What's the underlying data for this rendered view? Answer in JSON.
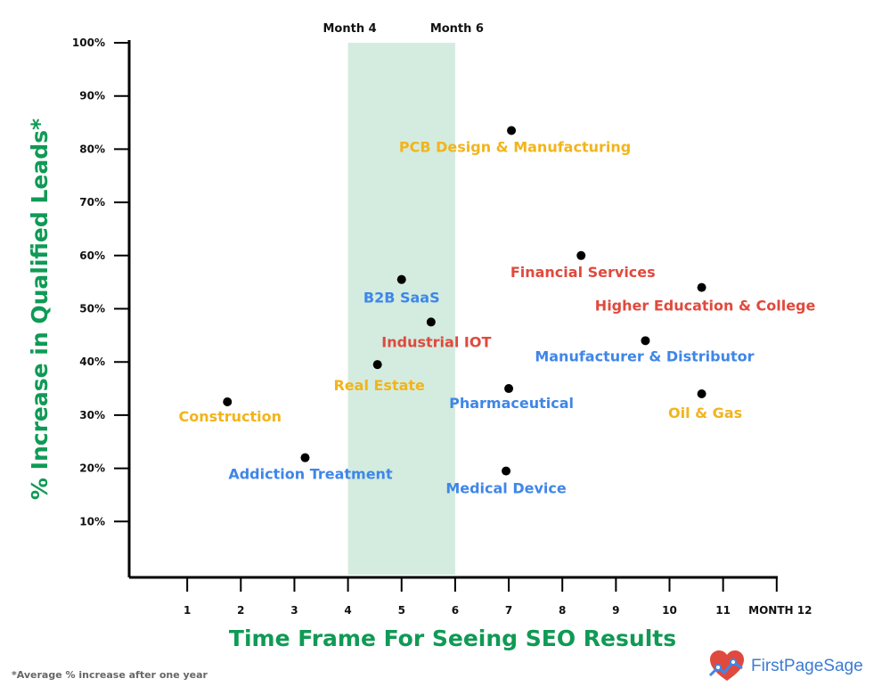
{
  "chart_data": {
    "type": "scatter",
    "ylabel": "% Increase in Qualified Leads*",
    "xlabel": "Time Frame For Seeing SEO Results",
    "footnote": "*Average % increase after one year",
    "x_ticks": [
      "1",
      "2",
      "3",
      "4",
      "5",
      "6",
      "7",
      "8",
      "9",
      "10",
      "11",
      "MONTH 12"
    ],
    "y_ticks": [
      "10%",
      "20%",
      "30%",
      "40%",
      "50%",
      "60%",
      "70%",
      "80%",
      "90%",
      "100%"
    ],
    "xlim": [
      0,
      12
    ],
    "ylim": [
      0,
      100
    ],
    "highlight_band": {
      "x_range": [
        4,
        6
      ],
      "labels": [
        "Month 4",
        "Month 6"
      ],
      "color": "#d3ecdf"
    },
    "points": [
      {
        "name": "PCB Design & Manufacturing",
        "x": 7.05,
        "y": 83.5,
        "color": "#f2b41b"
      },
      {
        "name": "Financial Services",
        "x": 8.35,
        "y": 60,
        "color": "#e0493d"
      },
      {
        "name": "Higher Education & College",
        "x": 10.6,
        "y": 54,
        "color": "#e0493d"
      },
      {
        "name": "B2B SaaS",
        "x": 5.0,
        "y": 55.5,
        "color": "#3f86e8"
      },
      {
        "name": "Industrial IOT",
        "x": 5.55,
        "y": 47.5,
        "color": "#e0493d"
      },
      {
        "name": "Manufacturer & Distributor",
        "x": 9.55,
        "y": 44,
        "color": "#3f86e8"
      },
      {
        "name": "Real Estate",
        "x": 4.55,
        "y": 39.5,
        "color": "#f2b41b"
      },
      {
        "name": "Pharmaceutical",
        "x": 7.0,
        "y": 35,
        "color": "#3f86e8"
      },
      {
        "name": "Oil & Gas",
        "x": 10.6,
        "y": 34,
        "color": "#f2b41b"
      },
      {
        "name": "Construction",
        "x": 1.75,
        "y": 32.5,
        "color": "#f2b41b"
      },
      {
        "name": "Addiction Treatment",
        "x": 3.2,
        "y": 22,
        "color": "#3f86e8"
      },
      {
        "name": "Medical Device",
        "x": 6.95,
        "y": 19.5,
        "color": "#3f86e8"
      }
    ]
  },
  "logo": {
    "text": "FirstPageSage",
    "icon": "heart-chart-icon"
  }
}
